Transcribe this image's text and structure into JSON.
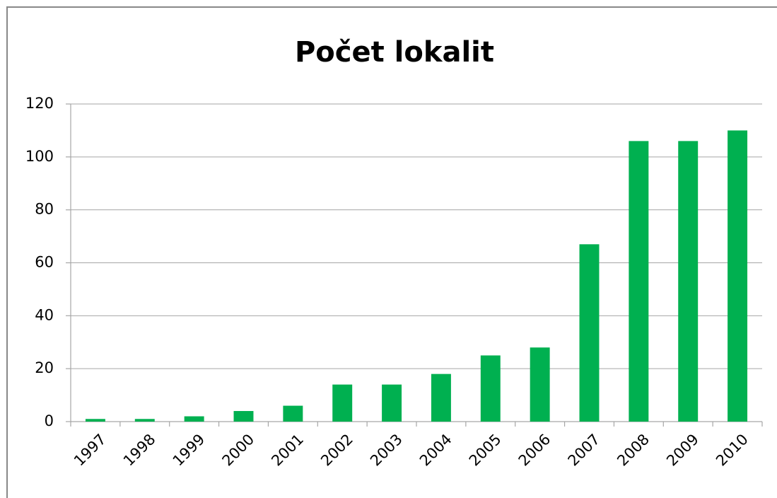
{
  "chart_data": {
    "type": "bar",
    "title": "Počet lokalit",
    "categories": [
      "1997",
      "1998",
      "1999",
      "2000",
      "2001",
      "2002",
      "2003",
      "2004",
      "2005",
      "2006",
      "2007",
      "2008",
      "2009",
      "2010"
    ],
    "values": [
      1,
      1,
      2,
      4,
      6,
      14,
      14,
      18,
      25,
      28,
      67,
      106,
      106,
      110
    ],
    "color": "#00b050",
    "ylim": [
      0,
      120
    ],
    "yticks": [
      0,
      20,
      40,
      60,
      80,
      100,
      120
    ],
    "grid": true
  }
}
